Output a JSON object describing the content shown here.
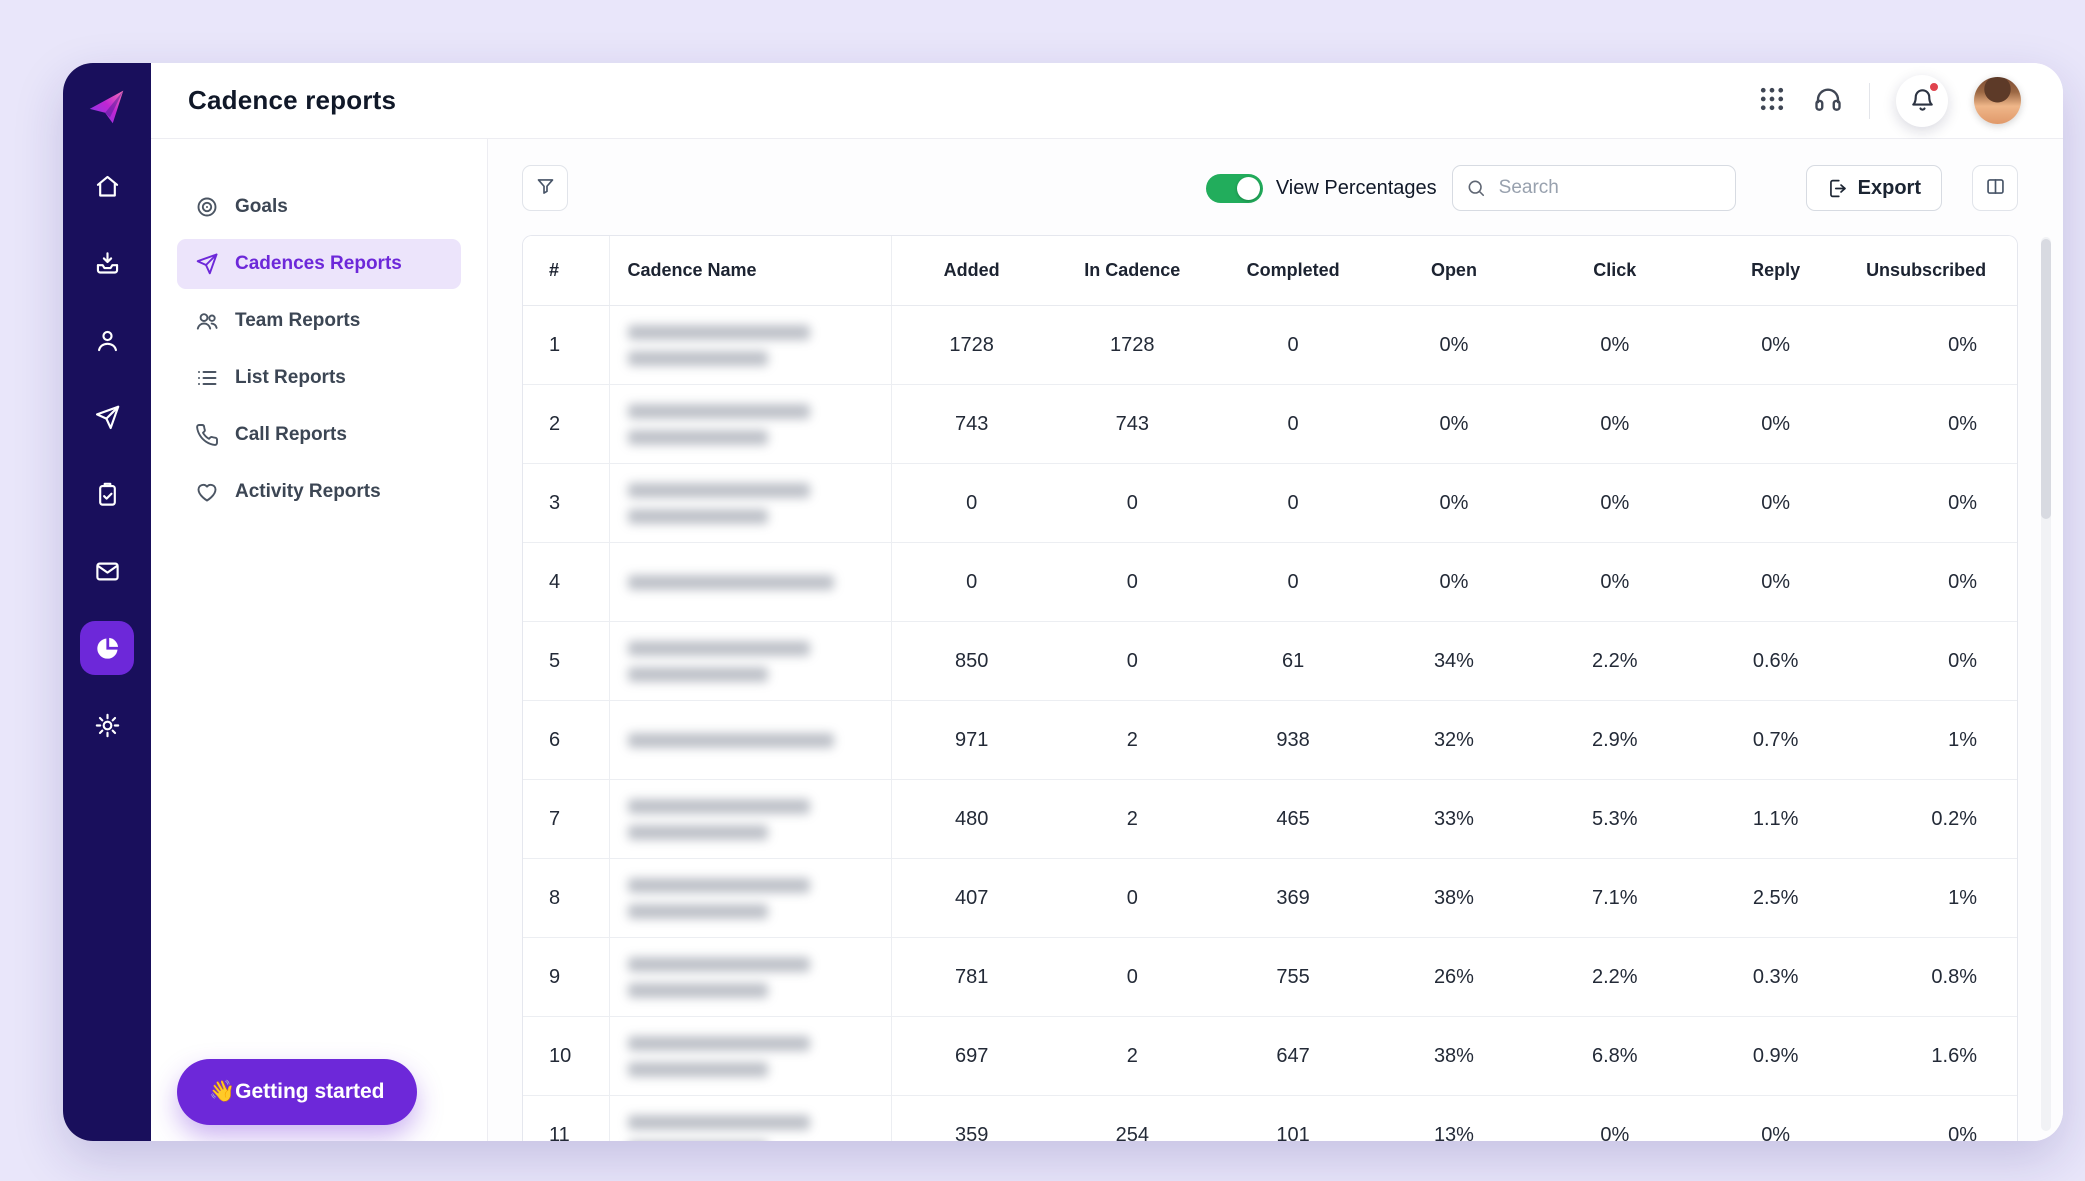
{
  "app": {
    "title": "Cadence reports"
  },
  "colors": {
    "accent": "#6d28d9",
    "rail_bg": "#190f5c",
    "toggle_on": "#22ad5c",
    "active_item_bg": "#ece4fb",
    "notification_dot": "#e0434d"
  },
  "rail": {
    "items": [
      {
        "id": "home",
        "icon": "home-icon",
        "active": false
      },
      {
        "id": "inbox",
        "icon": "inbox-icon",
        "active": false
      },
      {
        "id": "contacts",
        "icon": "contacts-icon",
        "active": false
      },
      {
        "id": "cadences",
        "icon": "send-icon",
        "active": false
      },
      {
        "id": "tasks",
        "icon": "tasks-icon",
        "active": false
      },
      {
        "id": "mail",
        "icon": "mail-icon",
        "active": false
      },
      {
        "id": "reports",
        "icon": "reports-icon",
        "active": true
      },
      {
        "id": "settings",
        "icon": "settings-icon",
        "active": false
      }
    ]
  },
  "sidebar": {
    "items": [
      {
        "id": "goals",
        "label": "Goals",
        "icon": "goals-icon",
        "active": false
      },
      {
        "id": "cadences-reports",
        "label": "Cadences Reports",
        "icon": "cadence-icon",
        "active": true
      },
      {
        "id": "team-reports",
        "label": "Team Reports",
        "icon": "team-icon",
        "active": false
      },
      {
        "id": "list-reports",
        "label": "List Reports",
        "icon": "list-icon",
        "active": false
      },
      {
        "id": "call-reports",
        "label": "Call Reports",
        "icon": "phone-icon",
        "active": false
      },
      {
        "id": "activity-reports",
        "label": "Activity Reports",
        "icon": "activity-icon",
        "active": false
      }
    ],
    "getting_started_label": "👋Getting started"
  },
  "controls": {
    "view_percentages_label": "View Percentages",
    "view_percentages_on": true,
    "search_placeholder": "Search",
    "export_label": "Export"
  },
  "table": {
    "columns": [
      "#",
      "Cadence Name",
      "Added",
      "In Cadence",
      "Completed",
      "Open",
      "Click",
      "Reply",
      "Unsubscribed"
    ],
    "rows": [
      {
        "num": "1",
        "name_redacted": true,
        "name_lines": 2,
        "added": "1728",
        "in_cadence": "1728",
        "completed": "0",
        "open": "0%",
        "click": "0%",
        "reply": "0%",
        "unsubscribed": "0%"
      },
      {
        "num": "2",
        "name_redacted": true,
        "name_lines": 2,
        "added": "743",
        "in_cadence": "743",
        "completed": "0",
        "open": "0%",
        "click": "0%",
        "reply": "0%",
        "unsubscribed": "0%"
      },
      {
        "num": "3",
        "name_redacted": true,
        "name_lines": 2,
        "added": "0",
        "in_cadence": "0",
        "completed": "0",
        "open": "0%",
        "click": "0%",
        "reply": "0%",
        "unsubscribed": "0%"
      },
      {
        "num": "4",
        "name_redacted": true,
        "name_lines": 1,
        "added": "0",
        "in_cadence": "0",
        "completed": "0",
        "open": "0%",
        "click": "0%",
        "reply": "0%",
        "unsubscribed": "0%"
      },
      {
        "num": "5",
        "name_redacted": true,
        "name_lines": 2,
        "added": "850",
        "in_cadence": "0",
        "completed": "61",
        "open": "34%",
        "click": "2.2%",
        "reply": "0.6%",
        "unsubscribed": "0%"
      },
      {
        "num": "6",
        "name_redacted": true,
        "name_lines": 1,
        "added": "971",
        "in_cadence": "2",
        "completed": "938",
        "open": "32%",
        "click": "2.9%",
        "reply": "0.7%",
        "unsubscribed": "1%"
      },
      {
        "num": "7",
        "name_redacted": true,
        "name_lines": 2,
        "added": "480",
        "in_cadence": "2",
        "completed": "465",
        "open": "33%",
        "click": "5.3%",
        "reply": "1.1%",
        "unsubscribed": "0.2%"
      },
      {
        "num": "8",
        "name_redacted": true,
        "name_lines": 2,
        "added": "407",
        "in_cadence": "0",
        "completed": "369",
        "open": "38%",
        "click": "7.1%",
        "reply": "2.5%",
        "unsubscribed": "1%"
      },
      {
        "num": "9",
        "name_redacted": true,
        "name_lines": 2,
        "added": "781",
        "in_cadence": "0",
        "completed": "755",
        "open": "26%",
        "click": "2.2%",
        "reply": "0.3%",
        "unsubscribed": "0.8%"
      },
      {
        "num": "10",
        "name_redacted": true,
        "name_lines": 2,
        "added": "697",
        "in_cadence": "2",
        "completed": "647",
        "open": "38%",
        "click": "6.8%",
        "reply": "0.9%",
        "unsubscribed": "1.6%"
      },
      {
        "num": "11",
        "name_redacted": true,
        "name_lines": 2,
        "added": "359",
        "in_cadence": "254",
        "completed": "101",
        "open": "13%",
        "click": "0%",
        "reply": "0%",
        "unsubscribed": "0%"
      }
    ]
  }
}
